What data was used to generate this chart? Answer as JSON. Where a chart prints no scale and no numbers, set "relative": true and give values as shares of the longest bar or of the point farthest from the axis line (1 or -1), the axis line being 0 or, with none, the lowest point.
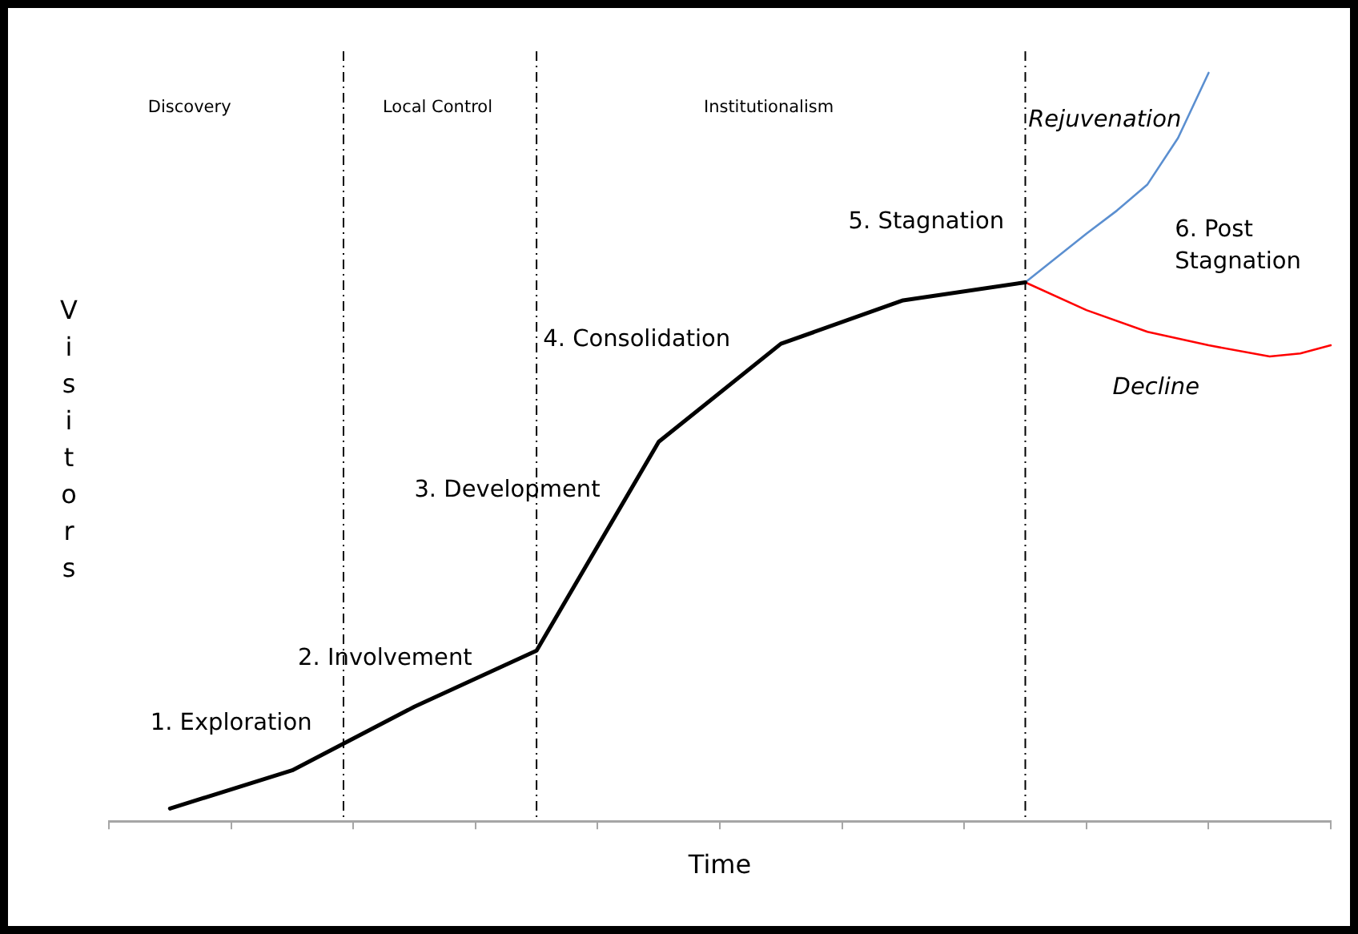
{
  "chart_data": {
    "type": "line",
    "xlabel": "Time",
    "ylabel": "Visitors",
    "relative": true,
    "grid": false,
    "legend": false,
    "marker": "none",
    "categories": [
      null,
      null,
      null,
      null,
      null,
      null,
      null,
      null,
      null,
      null,
      null,
      null,
      null,
      null,
      null,
      null,
      null,
      null,
      null,
      null,
      null,
      null,
      null,
      null,
      null,
      null,
      null,
      null,
      null,
      null,
      null,
      null,
      null,
      null,
      null,
      null,
      null,
      null,
      null,
      null,
      null
    ],
    "series": [
      {
        "color": "#000000",
        "values": [
          null,
          null,
          0.017,
          null,
          null,
          null,
          0.068,
          null,
          null,
          null,
          0.153,
          null,
          null,
          null,
          0.228,
          null,
          null,
          null,
          0.507,
          null,
          null,
          null,
          0.638,
          null,
          null,
          null,
          0.696,
          null,
          null,
          null,
          0.72,
          null,
          null,
          null,
          null,
          null,
          null,
          null,
          null,
          null,
          null
        ]
      },
      {
        "color": "#5b8fd0",
        "values": [
          null,
          null,
          null,
          null,
          null,
          null,
          null,
          null,
          null,
          null,
          null,
          null,
          null,
          null,
          null,
          null,
          null,
          null,
          null,
          null,
          null,
          null,
          null,
          null,
          null,
          null,
          null,
          null,
          null,
          null,
          0.72,
          null,
          0.785,
          0.816,
          0.851,
          0.913,
          1,
          null,
          null,
          null,
          null
        ]
      },
      {
        "color": "#ff0000",
        "values": [
          null,
          null,
          null,
          null,
          null,
          null,
          null,
          null,
          null,
          null,
          null,
          null,
          null,
          null,
          null,
          null,
          null,
          null,
          null,
          null,
          null,
          null,
          null,
          null,
          null,
          null,
          null,
          null,
          null,
          null,
          0.72,
          null,
          0.683,
          null,
          0.654,
          null,
          0.636,
          null,
          0.621,
          0.625,
          0.636
        ]
      }
    ],
    "annotations": [
      "Discovery",
      "Local Control",
      "Institutionalism",
      "Rejuvenation",
      "6. Post Stagnation",
      "5. Stagnation",
      "4. Consolidation",
      "3. Development",
      "2. Involvement",
      "1. Exploration",
      "Decline"
    ]
  }
}
